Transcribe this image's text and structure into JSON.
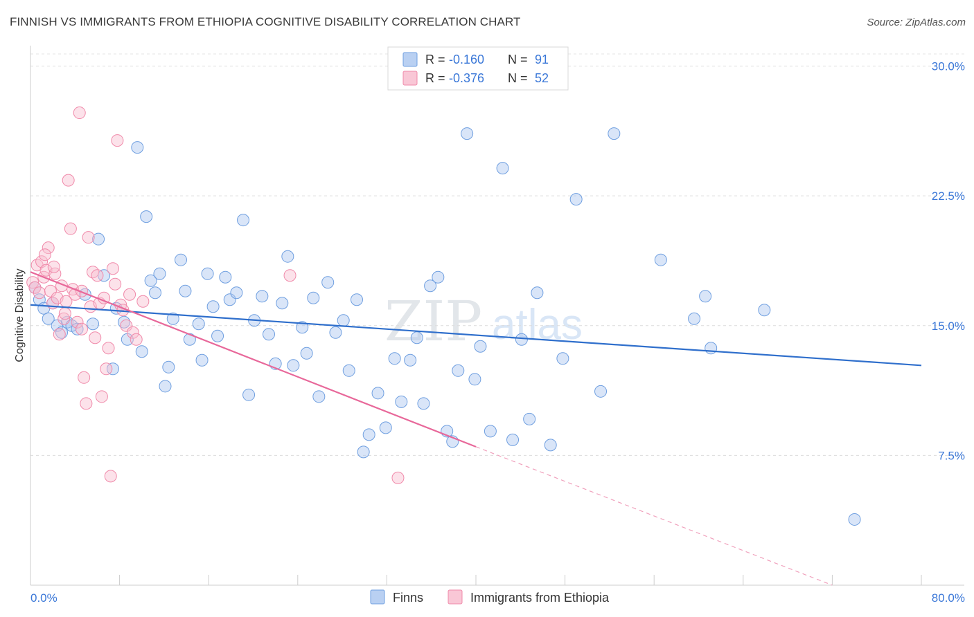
{
  "title": "FINNISH VS IMMIGRANTS FROM ETHIOPIA COGNITIVE DISABILITY CORRELATION CHART",
  "source": "Source: ZipAtlas.com",
  "watermark": {
    "zip": "ZIP",
    "atlas": "atlas"
  },
  "legend": {
    "r_label": "R =",
    "n_label": "N =",
    "rows": [
      {
        "r": "-0.160",
        "n": "91"
      },
      {
        "r": "-0.376",
        "n": "52"
      }
    ]
  },
  "bottom_legend": [
    "Finns",
    "Immigrants from Ethiopia"
  ],
  "chart_data": {
    "type": "scatter",
    "title": "FINNISH VS IMMIGRANTS FROM ETHIOPIA COGNITIVE DISABILITY CORRELATION CHART",
    "ylabel": "Cognitive Disability",
    "xlabel": "",
    "x_tick_labels": [
      "0.0%",
      "80.0%"
    ],
    "y_tick_labels": [
      "7.5%",
      "15.0%",
      "22.5%",
      "30.0%"
    ],
    "y_ticks": [
      7.5,
      15.0,
      22.5,
      30.0
    ],
    "xlim": [
      0,
      80
    ],
    "ylim": [
      0,
      30.7
    ],
    "grid": "horizontal dashed",
    "colors": {
      "finns": "#6f9fe0",
      "ethiopia": "#f08aaa",
      "finns_line": "#2f6fcc",
      "ethiopia_line": "#e8689a",
      "axis_label": "#3b78d8"
    },
    "series": [
      {
        "name": "Finns",
        "x": [
          0.4,
          0.8,
          1.2,
          1.6,
          2.0,
          2.4,
          2.8,
          3.3,
          3.7,
          4.2,
          4.9,
          5.6,
          6.1,
          6.6,
          7.4,
          7.7,
          8.4,
          8.7,
          9.6,
          10.0,
          10.4,
          10.8,
          11.2,
          11.6,
          12.1,
          12.4,
          12.8,
          13.5,
          13.9,
          14.3,
          15.1,
          15.4,
          15.9,
          16.4,
          16.8,
          17.5,
          17.9,
          18.5,
          19.1,
          19.6,
          20.1,
          20.8,
          21.4,
          22.0,
          22.6,
          23.1,
          23.6,
          24.4,
          24.8,
          25.4,
          25.9,
          26.7,
          27.4,
          28.1,
          28.6,
          29.3,
          29.9,
          30.4,
          31.2,
          31.9,
          32.7,
          33.3,
          34.1,
          34.7,
          35.3,
          35.9,
          36.6,
          37.4,
          37.9,
          38.4,
          39.2,
          39.9,
          40.4,
          41.3,
          42.0,
          42.4,
          43.3,
          44.1,
          44.8,
          45.5,
          46.7,
          47.8,
          49.0,
          51.2,
          52.4,
          56.6,
          59.6,
          60.6,
          61.1,
          65.9,
          74.0
        ],
        "y": [
          17.2,
          16.5,
          16.0,
          15.4,
          16.3,
          15.0,
          14.6,
          15.2,
          15.0,
          14.8,
          16.8,
          15.1,
          20.0,
          17.9,
          12.5,
          16.0,
          15.2,
          14.2,
          25.3,
          13.5,
          21.3,
          17.6,
          16.9,
          18.0,
          11.5,
          12.6,
          15.4,
          18.8,
          17.0,
          14.2,
          15.1,
          13.0,
          18.0,
          16.1,
          14.4,
          17.8,
          16.5,
          16.9,
          21.1,
          11.0,
          15.3,
          16.7,
          14.5,
          12.8,
          16.3,
          19.0,
          12.7,
          14.9,
          13.4,
          16.6,
          10.9,
          17.5,
          14.6,
          15.3,
          12.4,
          16.5,
          7.7,
          8.7,
          11.1,
          9.1,
          13.1,
          10.6,
          13.0,
          14.3,
          10.5,
          17.3,
          17.8,
          8.9,
          8.3,
          12.4,
          26.1,
          11.9,
          13.8,
          8.9,
          29.8,
          24.1,
          8.4,
          14.2,
          9.6,
          16.9,
          8.1,
          13.1,
          22.3,
          11.2,
          26.1,
          18.8,
          15.4,
          16.7,
          13.7,
          15.9,
          3.8
        ]
      },
      {
        "name": "Immigrants from Ethiopia",
        "x": [
          0.2,
          0.4,
          0.6,
          0.8,
          1.0,
          1.2,
          1.4,
          1.6,
          1.8,
          2.0,
          2.2,
          2.4,
          2.6,
          2.8,
          3.0,
          3.2,
          3.4,
          3.6,
          3.8,
          4.0,
          4.2,
          4.4,
          4.6,
          4.8,
          5.0,
          5.2,
          5.4,
          5.6,
          5.8,
          6.0,
          6.2,
          6.4,
          6.6,
          6.8,
          7.0,
          7.2,
          7.4,
          7.6,
          7.8,
          8.1,
          8.3,
          8.6,
          8.9,
          9.2,
          9.5,
          10.1,
          23.3,
          33.0,
          1.3,
          2.1,
          3.1,
          4.6
        ],
        "y": [
          17.5,
          17.2,
          18.5,
          16.9,
          18.7,
          17.8,
          18.2,
          19.5,
          17.0,
          16.3,
          18.0,
          16.6,
          14.5,
          17.3,
          15.4,
          16.4,
          23.4,
          20.6,
          17.1,
          16.8,
          15.2,
          27.3,
          14.8,
          12.0,
          10.5,
          20.1,
          16.1,
          18.1,
          14.3,
          17.9,
          16.3,
          10.9,
          16.6,
          12.5,
          13.7,
          6.3,
          18.3,
          17.4,
          25.7,
          16.2,
          15.9,
          15.0,
          16.8,
          14.6,
          14.2,
          16.4,
          17.9,
          6.2,
          19.1,
          18.4,
          15.7,
          17.0
        ]
      }
    ],
    "trend_lines": [
      {
        "series": "Finns",
        "x": [
          0,
          80
        ],
        "y": [
          16.2,
          12.7
        ]
      },
      {
        "series": "Immigrants from Ethiopia",
        "x": [
          0,
          40
        ],
        "y": [
          18.1,
          8.0
        ],
        "dashed_extension_to": [
          72,
          0
        ]
      }
    ]
  }
}
